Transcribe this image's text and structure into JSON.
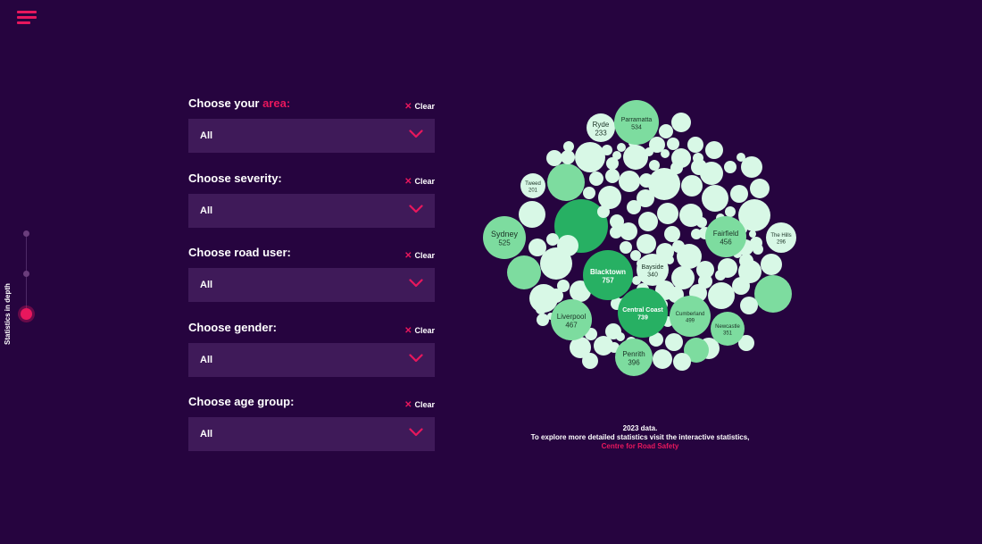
{
  "nav": {
    "side_label": "Statistics in depth"
  },
  "filters": [
    {
      "label": "Choose your ",
      "accent": "area:",
      "value": "All",
      "clear": "Clear"
    },
    {
      "label": "Choose severity:",
      "accent": "",
      "value": "All",
      "clear": "Clear"
    },
    {
      "label": "Choose road user:",
      "accent": "",
      "value": "All",
      "clear": "Clear"
    },
    {
      "label": "Choose gender:",
      "accent": "",
      "value": "All",
      "clear": "Clear"
    },
    {
      "label": "Choose age group:",
      "accent": "",
      "value": "All",
      "clear": "Clear"
    }
  ],
  "colors": {
    "background": "#26043f",
    "accent": "#e8175d",
    "select_bg": "#3f1a59",
    "bubble_dark": "#27b063",
    "bubble_mid": "#7ddc9f",
    "bubble_light": "#d8f8e6"
  },
  "bubbles_labeled": [
    {
      "name": "Ryde",
      "value": "233"
    },
    {
      "name": "Parramatta",
      "value": "534"
    },
    {
      "name": "Tweed",
      "value": "201"
    },
    {
      "name": "Sydney",
      "value": "525"
    },
    {
      "name": "Fairfield",
      "value": "456"
    },
    {
      "name": "The Hills",
      "value": "296"
    },
    {
      "name": "Blacktown",
      "value": "757"
    },
    {
      "name": "Bayside",
      "value": "340"
    },
    {
      "name": "Central Coast",
      "value": "739"
    },
    {
      "name": "Cumberland",
      "value": "499"
    },
    {
      "name": "Newcastle",
      "value": "351"
    },
    {
      "name": "Liverpool",
      "value": "467"
    },
    {
      "name": "Penrith",
      "value": "396"
    }
  ],
  "footnote": {
    "line1": "2023 data.",
    "line2": "To explore more detailed statistics visit the interactive statistics,",
    "link": "Centre for Road Safety"
  }
}
